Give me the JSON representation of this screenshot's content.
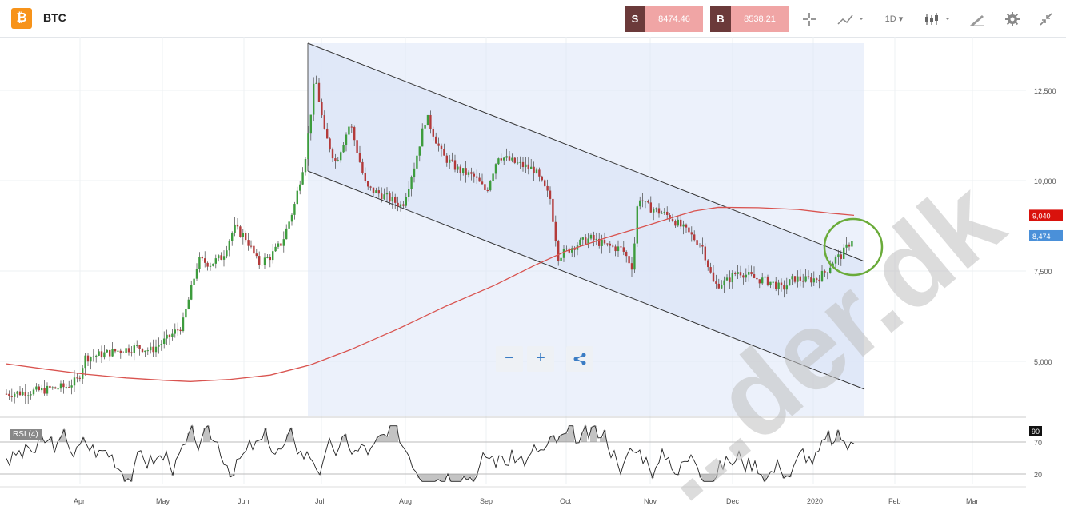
{
  "header": {
    "logo": "₿",
    "symbol": "BTC",
    "sell_tag": "S",
    "sell_price": "8474.46",
    "buy_tag": "B",
    "buy_price": "8538.21",
    "interval": "1D",
    "watermark": "...der.dk"
  },
  "icons": [
    "crosshair-icon",
    "indicators-icon",
    "candlestick-icon",
    "draw-icon",
    "settings-icon",
    "collapse-icon",
    "zoom-out-icon",
    "zoom-in-icon",
    "share-icon"
  ],
  "chart_data": {
    "type": "candlestick",
    "price_axis": {
      "ticks": [
        5000,
        7500,
        10000,
        12500
      ],
      "tick_labels": [
        "5,000",
        "7,500",
        "10,000",
        "12,500"
      ],
      "ylim": [
        3500,
        13800
      ]
    },
    "time_axis": {
      "labels": [
        "Apr",
        "May",
        "Jun",
        "Jul",
        "Aug",
        "Sep",
        "Oct",
        "Nov",
        "Dec",
        "2020",
        "Feb",
        "Mar"
      ]
    },
    "close_path": [
      [
        0,
        4100
      ],
      [
        25,
        4150
      ],
      [
        45,
        4200
      ],
      [
        60,
        4250
      ],
      [
        75,
        4300
      ],
      [
        90,
        4500
      ],
      [
        98,
        5100
      ],
      [
        120,
        5200
      ],
      [
        140,
        5300
      ],
      [
        165,
        5400
      ],
      [
        180,
        5300
      ],
      [
        200,
        5600
      ],
      [
        220,
        6000
      ],
      [
        240,
        7800
      ],
      [
        255,
        7700
      ],
      [
        270,
        7900
      ],
      [
        285,
        8700
      ],
      [
        300,
        8400
      ],
      [
        315,
        7700
      ],
      [
        330,
        7900
      ],
      [
        345,
        8300
      ],
      [
        360,
        9300
      ],
      [
        375,
        10800
      ],
      [
        386,
        12900
      ],
      [
        398,
        11300
      ],
      [
        412,
        10500
      ],
      [
        430,
        11600
      ],
      [
        450,
        9800
      ],
      [
        470,
        9600
      ],
      [
        495,
        9300
      ],
      [
        510,
        10400
      ],
      [
        525,
        11800
      ],
      [
        545,
        10700
      ],
      [
        565,
        10300
      ],
      [
        585,
        10100
      ],
      [
        600,
        9700
      ],
      [
        615,
        10700
      ],
      [
        635,
        10500
      ],
      [
        660,
        10300
      ],
      [
        680,
        9500
      ],
      [
        690,
        7900
      ],
      [
        710,
        8200
      ],
      [
        730,
        8400
      ],
      [
        750,
        8200
      ],
      [
        770,
        8100
      ],
      [
        783,
        7600
      ],
      [
        790,
        9600
      ],
      [
        800,
        9300
      ],
      [
        830,
        9000
      ],
      [
        850,
        8600
      ],
      [
        870,
        8200
      ],
      [
        885,
        7100
      ],
      [
        900,
        7200
      ],
      [
        915,
        7500
      ],
      [
        935,
        7300
      ],
      [
        955,
        7200
      ],
      [
        970,
        7000
      ],
      [
        985,
        7300
      ],
      [
        1000,
        7250
      ],
      [
        1015,
        7300
      ],
      [
        1025,
        7500
      ],
      [
        1035,
        7800
      ],
      [
        1045,
        7950
      ],
      [
        1060,
        8474
      ]
    ],
    "sma_path": [
      [
        0,
        4930
      ],
      [
        50,
        4780
      ],
      [
        100,
        4640
      ],
      [
        150,
        4540
      ],
      [
        200,
        4470
      ],
      [
        230,
        4440
      ],
      [
        280,
        4500
      ],
      [
        330,
        4620
      ],
      [
        380,
        4900
      ],
      [
        430,
        5320
      ],
      [
        490,
        5900
      ],
      [
        550,
        6530
      ],
      [
        610,
        7100
      ],
      [
        660,
        7650
      ],
      [
        700,
        8050
      ],
      [
        750,
        8420
      ],
      [
        800,
        8750
      ],
      [
        830,
        8960
      ],
      [
        860,
        9160
      ],
      [
        890,
        9260
      ],
      [
        940,
        9250
      ],
      [
        990,
        9200
      ],
      [
        1030,
        9100
      ],
      [
        1060,
        9040
      ]
    ],
    "last_price_labels": [
      "9,040",
      "8,474"
    ],
    "rsi": {
      "label": "RSI (4)",
      "current": "90",
      "levels": [
        70,
        20
      ],
      "level_labels": [
        "70",
        "20"
      ]
    }
  }
}
